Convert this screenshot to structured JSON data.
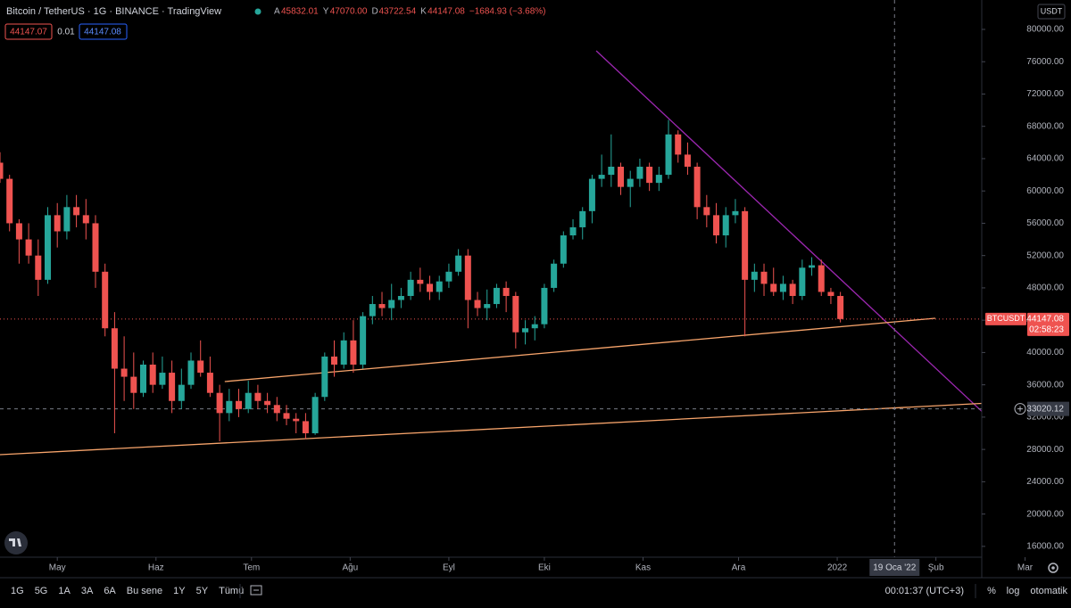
{
  "header": {
    "symbol": "Bitcoin / TetherUS · 1G · BINANCE · TradingView",
    "ohlc": [
      {
        "key": "A",
        "value": "45832.01"
      },
      {
        "key": "Y",
        "value": "47070.00"
      },
      {
        "key": "D",
        "value": "43722.54"
      },
      {
        "key": "K",
        "value": "44147.08"
      }
    ],
    "change": "−1684.93 (−3.68%)",
    "sell": "44147.07",
    "spread": "0.01",
    "buy": "44147.08",
    "currency": "USDT"
  },
  "chart_data": {
    "type": "candlestick",
    "up_color": "#26a69a",
    "down_color": "#ef5350",
    "xlim": [
      0,
      308.4
    ],
    "ylim": [
      14660,
      83640
    ],
    "xticks": [
      {
        "value": 18,
        "label": "May"
      },
      {
        "value": 49,
        "label": "Haz"
      },
      {
        "value": 79,
        "label": "Tem"
      },
      {
        "value": 110,
        "label": "Ağu"
      },
      {
        "value": 141,
        "label": "Eyl"
      },
      {
        "value": 171,
        "label": "Eki"
      },
      {
        "value": 202,
        "label": "Kas"
      },
      {
        "value": 232,
        "label": "Ara"
      },
      {
        "value": 263,
        "label": "2022"
      },
      {
        "value": 294,
        "label": "Şub"
      },
      {
        "value": 322,
        "label": "Mar"
      }
    ],
    "yticks": [
      {
        "value": 16000,
        "label": "16000.00"
      },
      {
        "value": 20000,
        "label": "20000.00"
      },
      {
        "value": 24000,
        "label": "24000.00"
      },
      {
        "value": 28000,
        "label": "28000.00"
      },
      {
        "value": 32000,
        "label": "32000.00"
      },
      {
        "value": 36000,
        "label": "36000.00"
      },
      {
        "value": 40000,
        "label": "40000.00"
      },
      {
        "value": 44000,
        "label": "44000.00"
      },
      {
        "value": 48000,
        "label": "48000.00"
      },
      {
        "value": 52000,
        "label": "52000.00"
      },
      {
        "value": 56000,
        "label": "56000.00"
      },
      {
        "value": 60000,
        "label": "60000.00"
      },
      {
        "value": 64000,
        "label": "64000.00"
      },
      {
        "value": 68000,
        "label": "68000.00"
      },
      {
        "value": 72000,
        "label": "72000.00"
      },
      {
        "value": 76000,
        "label": "76000.00"
      },
      {
        "value": 80000,
        "label": "80000.00"
      }
    ],
    "x": [
      0,
      3,
      6,
      9,
      12,
      15,
      18,
      21,
      24,
      27,
      30,
      33,
      36,
      39,
      42,
      45,
      48,
      51,
      54,
      57,
      60,
      63,
      66,
      69,
      72,
      75,
      78,
      81,
      84,
      87,
      90,
      93,
      96,
      99,
      102,
      105,
      108,
      111,
      114,
      117,
      120,
      123,
      126,
      129,
      132,
      135,
      138,
      141,
      144,
      147,
      150,
      153,
      156,
      159,
      162,
      165,
      168,
      171,
      174,
      177,
      180,
      183,
      186,
      189,
      192,
      195,
      198,
      201,
      204,
      207,
      210,
      213,
      216,
      219,
      222,
      225,
      228,
      231,
      234,
      237,
      240,
      243,
      246,
      249,
      252,
      255,
      258,
      261,
      264
    ],
    "open": [
      63500,
      61500,
      56000,
      54000,
      52000,
      49000,
      57000,
      55000,
      58000,
      57000,
      56000,
      50000,
      43000,
      38000,
      37000,
      35000,
      38500,
      36000,
      37500,
      34000,
      36000,
      39000,
      37500,
      35000,
      32500,
      34000,
      33000,
      35000,
      34000,
      33500,
      32500,
      31800,
      31500,
      30000,
      34500,
      39500,
      38500,
      41500,
      38500,
      44500,
      46000,
      45500,
      46500,
      47000,
      49000,
      48500,
      47500,
      48800,
      50000,
      52000,
      46500,
      45500,
      46000,
      48000,
      47000,
      42500,
      43000,
      43500,
      48000,
      51000,
      54500,
      55500,
      57500,
      61500,
      62000,
      63000,
      60500,
      61500,
      63000,
      61000,
      62000,
      67000,
      64500,
      63000,
      58000,
      57000,
      54500,
      57000,
      57500,
      49000,
      50000,
      48500,
      47500,
      48500,
      47000,
      50500,
      50800,
      47500,
      47000
    ],
    "high": [
      64800,
      62000,
      56500,
      56000,
      54000,
      58000,
      58500,
      59500,
      59500,
      59000,
      57000,
      51000,
      45000,
      42000,
      40000,
      39000,
      40000,
      39500,
      39000,
      38000,
      40000,
      41500,
      39500,
      36000,
      35500,
      35500,
      36500,
      36000,
      35000,
      34500,
      33500,
      32500,
      32500,
      35000,
      40000,
      41500,
      42500,
      44000,
      45000,
      47000,
      47500,
      48500,
      48000,
      50000,
      50500,
      49500,
      49500,
      51000,
      52800,
      52800,
      47500,
      47800,
      48500,
      48800,
      47500,
      44000,
      44500,
      48500,
      51500,
      55000,
      56500,
      58000,
      62000,
      64500,
      67000,
      63500,
      62500,
      64000,
      63500,
      63000,
      68800,
      67500,
      66000,
      63500,
      59500,
      58500,
      58000,
      59000,
      58000,
      51000,
      51000,
      50500,
      49500,
      49000,
      51500,
      51800,
      51500,
      48000,
      47500
    ],
    "low": [
      61000,
      55000,
      51000,
      51000,
      47000,
      48500,
      53000,
      54000,
      55500,
      54000,
      48000,
      42000,
      30000,
      34000,
      33000,
      34500,
      35000,
      35500,
      32500,
      33000,
      35500,
      37000,
      34500,
      29000,
      31500,
      32000,
      32500,
      33000,
      32500,
      31500,
      31000,
      30000,
      29300,
      29800,
      34000,
      37000,
      38000,
      37500,
      38000,
      43500,
      44500,
      44000,
      45500,
      46500,
      47500,
      46500,
      46500,
      48000,
      49500,
      43000,
      44500,
      44000,
      45500,
      45000,
      40500,
      41000,
      41500,
      43000,
      47500,
      50500,
      54000,
      54000,
      56000,
      60500,
      60500,
      59500,
      58000,
      60500,
      60000,
      60000,
      61500,
      63500,
      62000,
      56500,
      55500,
      53500,
      53000,
      56000,
      42000,
      47500,
      47000,
      47000,
      46500,
      46000,
      46500,
      49500,
      47000,
      46000,
      43722.54
    ],
    "close": [
      61500,
      56000,
      54000,
      52000,
      49000,
      57000,
      55000,
      58000,
      57000,
      56000,
      50000,
      43000,
      38000,
      37000,
      35000,
      38500,
      36000,
      37500,
      34000,
      36000,
      39000,
      37500,
      35000,
      32500,
      34000,
      33000,
      35000,
      34000,
      33500,
      32500,
      31800,
      31500,
      30000,
      34500,
      39500,
      38500,
      41500,
      38500,
      44500,
      46000,
      45500,
      46500,
      47000,
      49000,
      48500,
      47500,
      48800,
      50000,
      52000,
      46500,
      45500,
      46000,
      48000,
      47000,
      42500,
      43000,
      43500,
      48000,
      51000,
      54500,
      55500,
      57500,
      61500,
      62000,
      63000,
      60500,
      61500,
      63000,
      61000,
      62000,
      67000,
      64500,
      63000,
      58000,
      57000,
      54500,
      57000,
      57500,
      49000,
      50000,
      48500,
      47500,
      48500,
      47000,
      50500,
      50800,
      47500,
      47000,
      44147.08
    ],
    "trendlines": [
      {
        "color": "#9c27b0",
        "x": [
          187.3,
          313.4
        ],
        "y": [
          77350,
          30880
        ]
      },
      {
        "color": "#f7a46b",
        "x": [
          70.6,
          293.8
        ],
        "y": [
          36400,
          44240
        ]
      },
      {
        "color": "#f7a46b",
        "x": [
          0,
          318
        ],
        "y": [
          27350,
          33900
        ]
      }
    ],
    "last_price": {
      "symbol": "BTCUSDT",
      "value": 44147.08,
      "countdown": "02:58:23"
    },
    "crosshair": {
      "x": 281,
      "x_label": "19 Oca '22",
      "y": 33020.12
    }
  },
  "toolbar": {
    "ranges": [
      "1G",
      "5G",
      "1A",
      "3A",
      "6A",
      "Bu sene",
      "1Y",
      "5Y",
      "Tümü"
    ],
    "clock": "00:01:37 (UTC+3)",
    "percent": "%",
    "log": "log",
    "auto": "otomatik"
  }
}
